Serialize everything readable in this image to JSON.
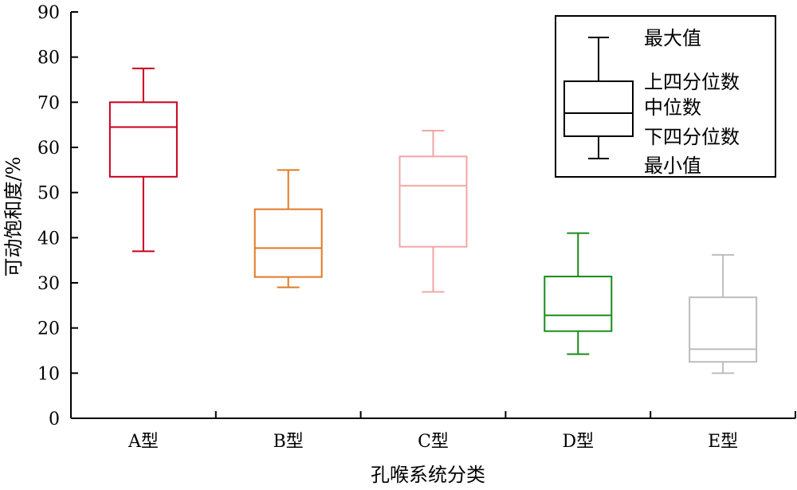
{
  "chart_data": {
    "type": "boxplot",
    "xlabel": "孔喉系统分类",
    "ylabel": "可动饱和度/%",
    "ylim": [
      0,
      90
    ],
    "yticks": [
      0,
      10,
      20,
      30,
      40,
      50,
      60,
      70,
      80,
      90
    ],
    "grid": false,
    "legend_position": "top-right",
    "categories": [
      "A型",
      "B型",
      "C型",
      "D型",
      "E型"
    ],
    "boxes": [
      {
        "category": "A型",
        "min": 37,
        "q1": 53.5,
        "median": 64.5,
        "q3": 70,
        "max": 77.5,
        "color": "#c8001e"
      },
      {
        "category": "B型",
        "min": 29,
        "q1": 31.3,
        "median": 37.7,
        "q3": 46.3,
        "max": 55,
        "color": "#e07a25"
      },
      {
        "category": "C型",
        "min": 28,
        "q1": 38,
        "median": 51.5,
        "q3": 58,
        "max": 63.7,
        "color": "#f2a6a6"
      },
      {
        "category": "D型",
        "min": 14.2,
        "q1": 19.3,
        "median": 22.8,
        "q3": 31.4,
        "max": 41,
        "color": "#1a8a1a"
      },
      {
        "category": "E型",
        "min": 10,
        "q1": 12.5,
        "median": 15.3,
        "q3": 26.8,
        "max": 36.2,
        "color": "#bdbdbd"
      }
    ],
    "legend": {
      "max_label": "最大值",
      "q3_label": "上四分位数",
      "median_label": "中位数",
      "q1_label": "下四分位数",
      "min_label": "最小值"
    }
  }
}
